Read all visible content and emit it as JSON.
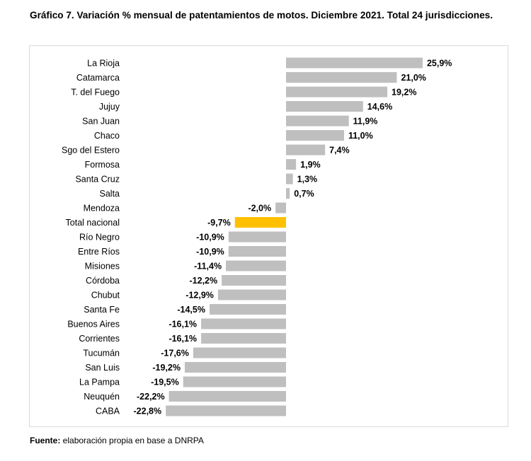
{
  "title": "Gráfico 7. Variación % mensual de patentamientos de motos. Diciembre 2021. Total 24 jurisdicciones.",
  "source": {
    "label": "Fuente:",
    "text": " elaboración propia en base a DNRPA"
  },
  "colors": {
    "bar": "#bfbfbf",
    "highlight": "#ffc000",
    "frame": "#d9d9d9"
  },
  "chart_data": {
    "type": "bar",
    "orientation": "horizontal",
    "title": "Variación % mensual de patentamientos de motos. Diciembre 2021",
    "xlabel": "",
    "ylabel": "",
    "xlim": [
      -22.8,
      25.9
    ],
    "grid": false,
    "highlight": "Total nacional",
    "categories": [
      "La Rioja",
      "Catamarca",
      "T. del Fuego",
      "Jujuy",
      "San Juan",
      "Chaco",
      "Sgo del Estero",
      "Formosa",
      "Santa Cruz",
      "Salta",
      "Mendoza",
      "Total nacional",
      "Río Negro",
      "Entre Ríos",
      "Misiones",
      "Córdoba",
      "Chubut",
      "Santa Fe",
      "Buenos Aires",
      "Corrientes",
      "Tucumán",
      "San Luis",
      "La Pampa",
      "Neuquén",
      "CABA"
    ],
    "values": [
      25.9,
      21.0,
      19.2,
      14.6,
      11.9,
      11.0,
      7.4,
      1.9,
      1.3,
      0.7,
      -2.0,
      -9.7,
      -10.9,
      -10.9,
      -11.4,
      -12.2,
      -12.9,
      -14.5,
      -16.1,
      -16.1,
      -17.6,
      -19.2,
      -19.5,
      -22.2,
      -22.8
    ],
    "labels": [
      "25,9%",
      "21,0%",
      "19,2%",
      "14,6%",
      "11,9%",
      "11,0%",
      "7,4%",
      "1,9%",
      "1,3%",
      "0,7%",
      "-2,0%",
      "-9,7%",
      "-10,9%",
      "-10,9%",
      "-11,4%",
      "-12,2%",
      "-12,9%",
      "-14,5%",
      "-16,1%",
      "-16,1%",
      "-17,6%",
      "-19,2%",
      "-19,5%",
      "-22,2%",
      "-22,8%"
    ]
  }
}
